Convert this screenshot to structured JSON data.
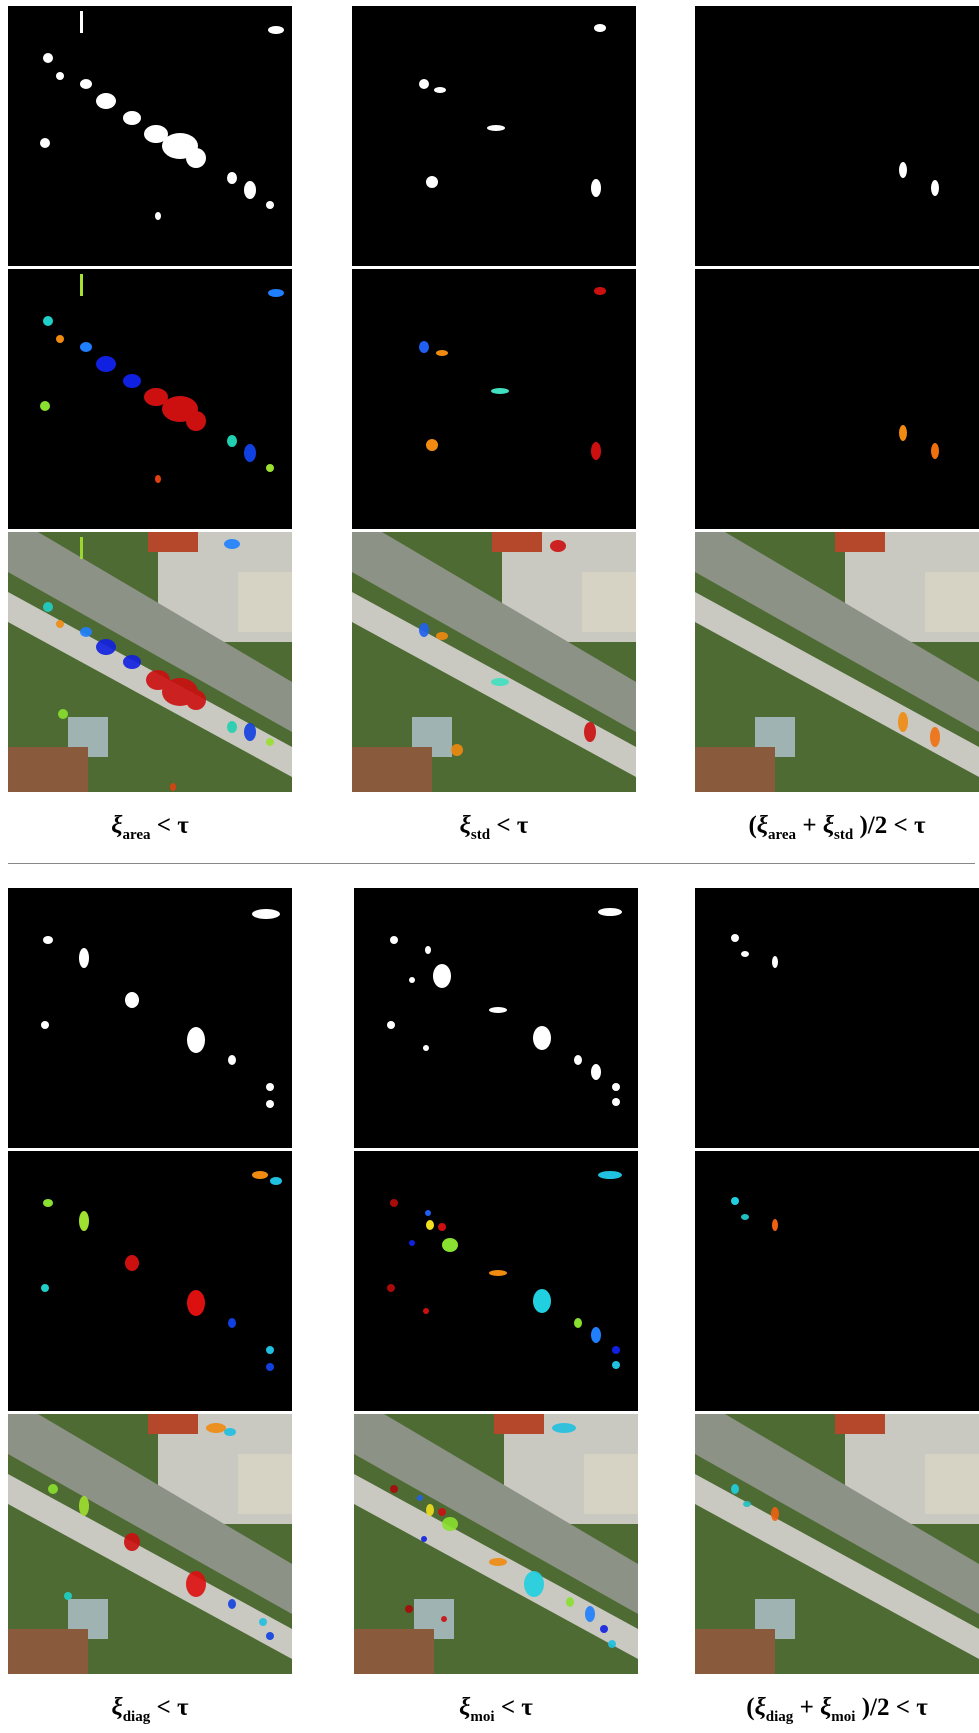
{
  "captions": {
    "area": {
      "sym": "ξ",
      "sub": "area",
      "rest": " < τ"
    },
    "std": {
      "sym": "ξ",
      "sub": "std",
      "rest": " < τ"
    },
    "area_std": {
      "open": "(",
      "sym1": "ξ",
      "sub1": "area",
      "plus": " + ",
      "sym2": "ξ",
      "sub2": "std",
      "close": " )/2 < τ"
    },
    "diag": {
      "sym": "ξ",
      "sub": "diag",
      "rest": " < τ"
    },
    "moi": {
      "sym": "ξ",
      "sub": "moi",
      "rest": " < τ"
    },
    "diag_moi": {
      "open": "(",
      "sym1": "ξ",
      "sub1": "diag",
      "plus": " + ",
      "sym2": "ξ",
      "sub2": "moi",
      "close": " )/2 < τ"
    }
  },
  "colors": {
    "mask_bg": "#000000",
    "mask_fg": "#ffffff",
    "aerial_vegetation": "#4e6b34",
    "aerial_road": "#8d9287",
    "aerial_parking": "#c9c9c2",
    "aerial_roof": "#b5472a"
  }
}
